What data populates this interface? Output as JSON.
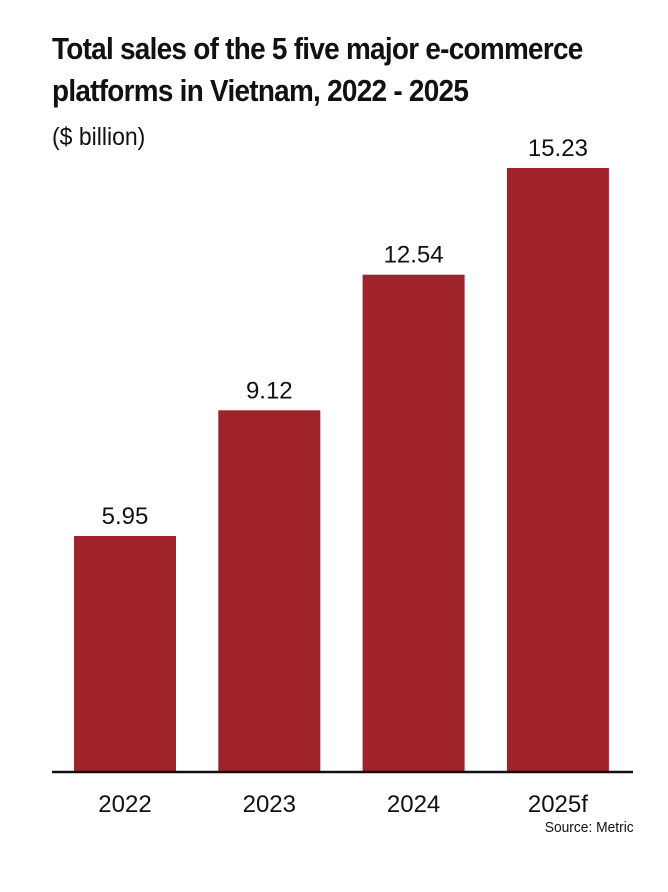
{
  "title": "Total sales of the 5 five major e-commerce platforms in Vietnam, 2022 - 2025",
  "subtitle": "($ billion)",
  "source": "Source: Metric",
  "colors": {
    "bar": "#a0232b",
    "text": "#111111",
    "axis": "#111111"
  },
  "chart_data": {
    "type": "bar",
    "title": "Total sales of the 5 five major e-commerce platforms in Vietnam, 2022 - 2025",
    "subtitle": "($ billion)",
    "categories": [
      "2022",
      "2023",
      "2024",
      "2025f"
    ],
    "values": [
      5.95,
      9.12,
      12.54,
      15.23
    ],
    "data_labels": [
      "5.95",
      "9.12",
      "12.54",
      "15.23"
    ],
    "xlabel": "",
    "ylabel": "",
    "ylim": [
      0,
      15.23
    ],
    "grid": false,
    "legend": "none"
  }
}
